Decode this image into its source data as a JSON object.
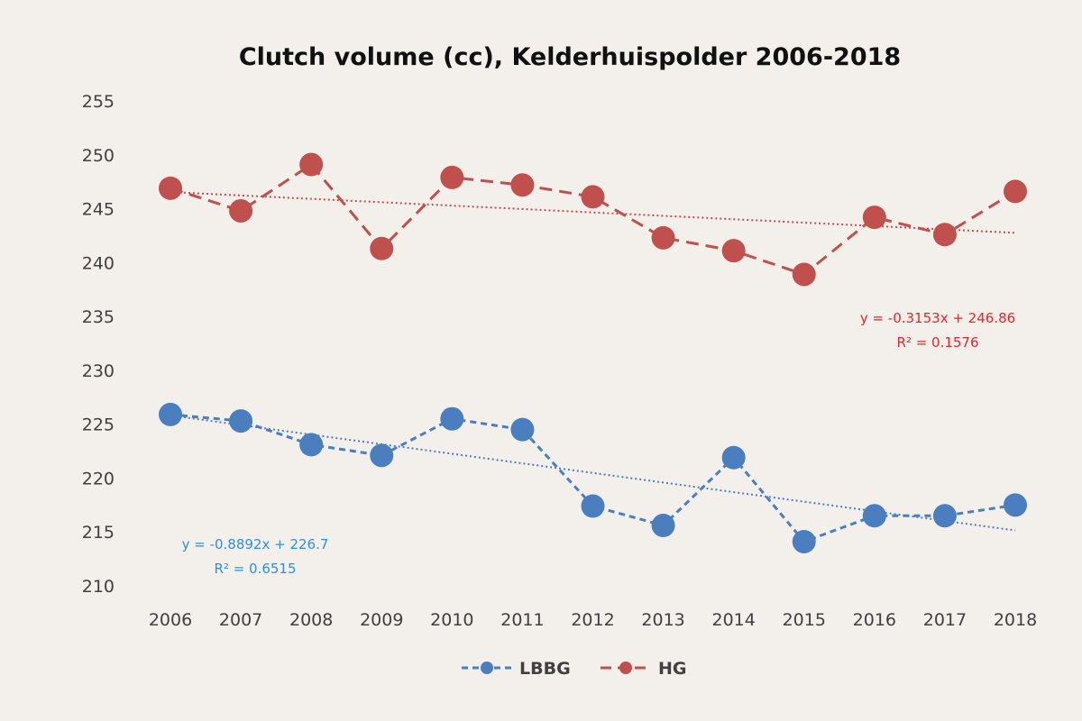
{
  "chart_data": {
    "type": "line",
    "title": "Clutch volume (cc), Kelderhuispolder  2006-2018",
    "xlabel": "",
    "ylabel": "",
    "categories": [
      "2006",
      "2007",
      "2008",
      "2009",
      "2010",
      "2011",
      "2012",
      "2013",
      "2014",
      "2015",
      "2016",
      "2017",
      "2018"
    ],
    "ylim": [
      210,
      255
    ],
    "yticks": [
      210,
      215,
      220,
      225,
      230,
      235,
      240,
      245,
      250,
      255
    ],
    "grid": false,
    "legend_position": "bottom",
    "series": [
      {
        "name": "LBBG",
        "color": "#4a7ebf",
        "values": [
          225.9,
          225.3,
          223.1,
          222.1,
          225.5,
          224.5,
          217.4,
          215.6,
          221.9,
          214.1,
          216.5,
          216.5,
          217.5
        ],
        "trendline": {
          "slope": -0.8892,
          "intercept": 226.7,
          "equation": "y = -0.8892x + 226.7",
          "r2": "R² = 0.6515"
        }
      },
      {
        "name": "HG",
        "color": "#c0504d",
        "values": [
          246.9,
          244.8,
          249.1,
          241.3,
          247.9,
          247.2,
          246.1,
          242.3,
          241.1,
          238.9,
          244.2,
          242.6,
          246.6
        ],
        "trendline": {
          "slope": -0.3153,
          "intercept": 246.86,
          "equation": "y = -0.3153x + 246.86",
          "r2": "R² = 0.1576"
        }
      }
    ],
    "equation_colors": {
      "LBBG": "#2e8fe0",
      "HG": "#e0282e"
    }
  }
}
